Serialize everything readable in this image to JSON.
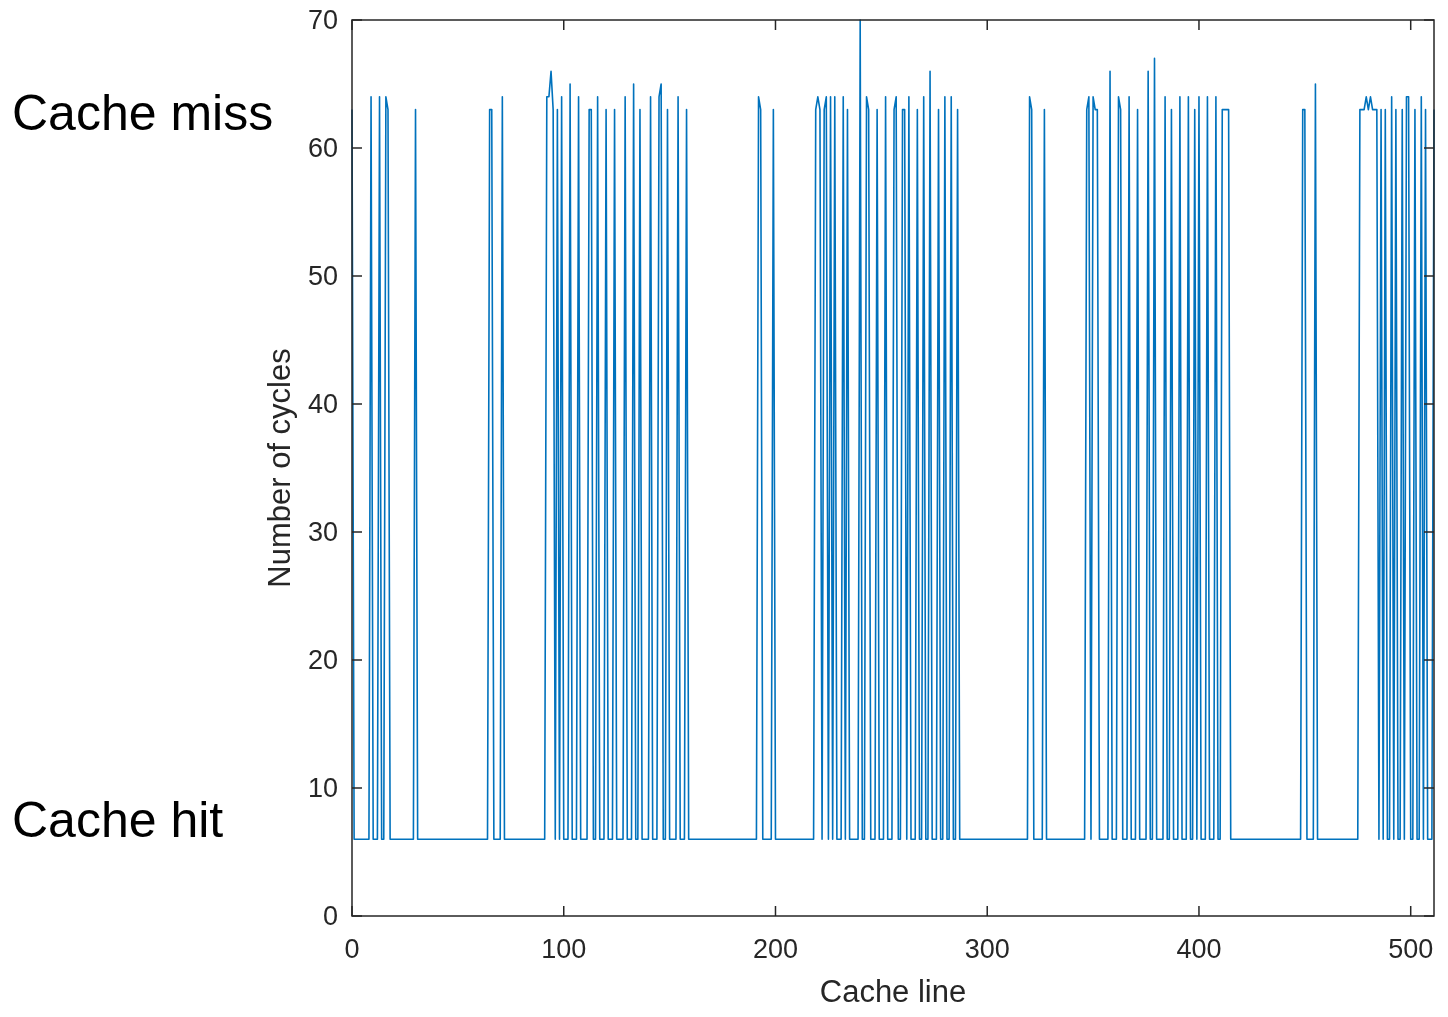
{
  "chart_data": {
    "type": "line",
    "xlabel": "Cache line",
    "ylabel": "Number of cycles",
    "xlim": [
      0,
      511
    ],
    "ylim": [
      0,
      70
    ],
    "xticks": [
      0,
      100,
      200,
      300,
      400,
      500
    ],
    "yticks": [
      0,
      10,
      20,
      30,
      40,
      50,
      60,
      70
    ],
    "grid": false,
    "marker": "none",
    "line_style": "solid",
    "annotations": [
      "Cache miss",
      "Cache hit"
    ],
    "series": [
      {
        "color": "#0072bd",
        "x": [
          0,
          1,
          8,
          9,
          10,
          12,
          13,
          14,
          15,
          16,
          17,
          18,
          29,
          30,
          31,
          64,
          65,
          66,
          67,
          70,
          71,
          72,
          91,
          92,
          93,
          94,
          95,
          96,
          97,
          98,
          99,
          100,
          102,
          103,
          104,
          106,
          107,
          108,
          111,
          112,
          113,
          114,
          115,
          116,
          117,
          119,
          120,
          121,
          123,
          124,
          125,
          128,
          129,
          130,
          132,
          133,
          134,
          135,
          136,
          137,
          140,
          141,
          142,
          144,
          145,
          146,
          147,
          148,
          149,
          150,
          153,
          154,
          155,
          157,
          158,
          159,
          191,
          192,
          193,
          194,
          198,
          199,
          200,
          218,
          219,
          220,
          221,
          222,
          223,
          224,
          225,
          226,
          227,
          228,
          229,
          231,
          232,
          233,
          234,
          235,
          239,
          240,
          241,
          242,
          243,
          244,
          245,
          247,
          248,
          249,
          251,
          252,
          253,
          255,
          256,
          257,
          258,
          259,
          260,
          261,
          262,
          263,
          264,
          266,
          267,
          268,
          269,
          270,
          271,
          272,
          273,
          274,
          276,
          277,
          278,
          279,
          280,
          281,
          282,
          283,
          284,
          285,
          286,
          287,
          319,
          320,
          321,
          322,
          326,
          327,
          328,
          346,
          347,
          348,
          349,
          350,
          351,
          352,
          353,
          357,
          358,
          359,
          361,
          362,
          363,
          364,
          366,
          367,
          368,
          370,
          371,
          372,
          375,
          376,
          377,
          378,
          379,
          380,
          383,
          384,
          385,
          386,
          387,
          388,
          390,
          391,
          392,
          394,
          395,
          396,
          397,
          398,
          399,
          400,
          401,
          403,
          404,
          405,
          407,
          408,
          409,
          410,
          411,
          412,
          413,
          414,
          415,
          448,
          449,
          450,
          451,
          454,
          455,
          456,
          475,
          476,
          477,
          478,
          479,
          480,
          481,
          482,
          483,
          484,
          485,
          486,
          487,
          488,
          489,
          490,
          491,
          492,
          493,
          494,
          495,
          496,
          497,
          498,
          499,
          500,
          501,
          502,
          503,
          504,
          505,
          506,
          507,
          508,
          510,
          511
        ],
        "values": [
          63,
          6,
          6,
          64,
          6,
          6,
          64,
          6,
          6,
          64,
          63,
          6,
          6,
          63,
          6,
          6,
          63,
          63,
          6,
          6,
          64,
          6,
          6,
          64,
          64,
          66,
          63,
          6,
          63,
          6,
          64,
          6,
          6,
          65,
          6,
          6,
          64,
          6,
          6,
          63,
          63,
          6,
          6,
          64,
          6,
          6,
          63,
          6,
          6,
          63,
          6,
          6,
          64,
          6,
          6,
          65,
          6,
          6,
          63,
          6,
          6,
          64,
          6,
          6,
          64,
          65,
          6,
          6,
          63,
          6,
          6,
          64,
          6,
          6,
          63,
          6,
          6,
          64,
          63,
          6,
          6,
          63,
          6,
          6,
          63,
          64,
          63,
          6,
          63,
          64,
          6,
          64,
          6,
          64,
          6,
          6,
          64,
          6,
          63,
          6,
          6,
          70,
          6,
          6,
          64,
          63,
          6,
          6,
          63,
          6,
          6,
          64,
          6,
          6,
          63,
          64,
          6,
          6,
          63,
          63,
          6,
          64,
          6,
          6,
          63,
          6,
          6,
          64,
          6,
          6,
          66,
          6,
          6,
          63,
          6,
          6,
          64,
          6,
          6,
          64,
          6,
          6,
          63,
          6,
          6,
          64,
          63,
          6,
          6,
          63,
          6,
          6,
          63,
          64,
          6,
          64,
          63,
          63,
          6,
          6,
          66,
          6,
          6,
          64,
          63,
          6,
          6,
          64,
          6,
          6,
          63,
          6,
          6,
          66,
          6,
          6,
          67,
          6,
          6,
          64,
          6,
          6,
          63,
          6,
          6,
          64,
          6,
          6,
          64,
          6,
          6,
          63,
          6,
          64,
          6,
          6,
          64,
          6,
          6,
          64,
          6,
          6,
          63,
          63,
          63,
          63,
          6,
          6,
          63,
          63,
          6,
          6,
          65,
          6,
          6,
          63,
          63,
          63,
          64,
          63,
          64,
          63,
          63,
          63,
          6,
          63,
          6,
          63,
          6,
          6,
          64,
          6,
          63,
          6,
          6,
          63,
          6,
          64,
          64,
          6,
          6,
          63,
          6,
          6,
          64,
          6,
          63,
          6,
          6,
          63
        ]
      }
    ]
  }
}
